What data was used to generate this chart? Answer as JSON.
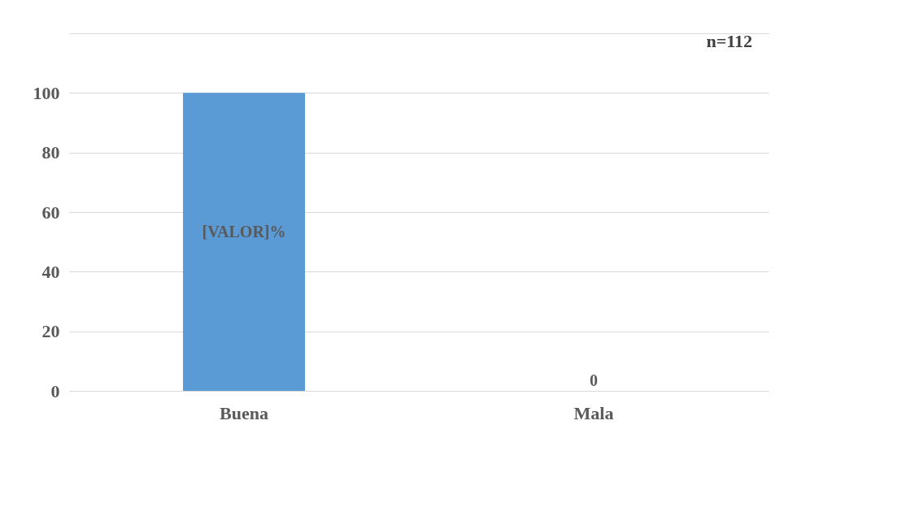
{
  "chart_data": {
    "type": "bar",
    "categories": [
      "Buena",
      "Mala"
    ],
    "values": [
      100,
      0
    ],
    "color": "#5b9bd5",
    "value_labels": [
      "[VALOR]%",
      "0"
    ],
    "ylim": [
      0,
      120
    ],
    "yticks": [
      0,
      20,
      40,
      60,
      80,
      100,
      {
        "value": 120,
        "label": null
      }
    ],
    "grid": "y",
    "annotations": [
      "n=112"
    ]
  }
}
